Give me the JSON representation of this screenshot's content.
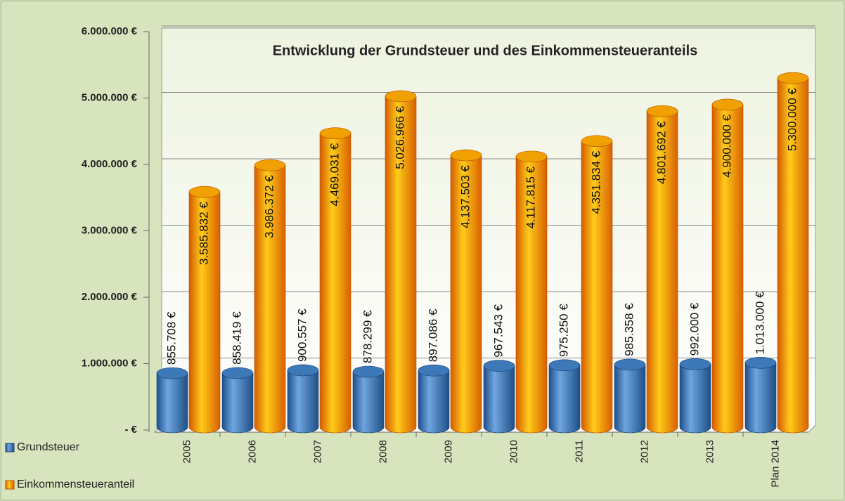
{
  "chart_data": {
    "type": "bar",
    "title": "Entwicklung der Grundsteuer und des Einkommensteueranteils",
    "categories": [
      "2005",
      "2006",
      "2007",
      "2008",
      "2009",
      "2010",
      "2011",
      "2012",
      "2013",
      "Plan 2014"
    ],
    "series": [
      {
        "name": "Grundsteuer",
        "color": "#3f7fc4",
        "values": [
          855708,
          858419,
          900557,
          878299,
          897086,
          967543,
          975250,
          985358,
          992000,
          1013000
        ],
        "value_labels": [
          "855.708 €",
          "858.419 €",
          "900.557 €",
          "878.299 €",
          "897.086 €",
          "967.543 €",
          "975.250 €",
          "985.358 €",
          "992.000 €",
          "1.013.000 €"
        ]
      },
      {
        "name": "Einkommensteueranteil",
        "color": "#f5a400",
        "values": [
          3585832,
          3986372,
          4469031,
          5026966,
          4137503,
          4117815,
          4351834,
          4801692,
          4900000,
          5300000
        ],
        "value_labels": [
          "3.585.832 €",
          "3.986.372 €",
          "4.469.031 €",
          "5.026.966 €",
          "4.137.503 €",
          "4.117.815 €",
          "4.351.834 €",
          "4.801.692 €",
          "4.900.000 €",
          "5.300.000 €"
        ]
      }
    ],
    "ylim": [
      0,
      6000000
    ],
    "yticks": [
      {
        "value": 0,
        "label": "-  €"
      },
      {
        "value": 1000000,
        "label": "1.000.000 €"
      },
      {
        "value": 2000000,
        "label": "2.000.000 €"
      },
      {
        "value": 3000000,
        "label": "3.000.000 €"
      },
      {
        "value": 4000000,
        "label": "4.000.000 €"
      },
      {
        "value": 5000000,
        "label": "5.000.000 €"
      },
      {
        "value": 6000000,
        "label": "6.000.000 €"
      }
    ],
    "grid": true,
    "legend": "bottom-left"
  }
}
